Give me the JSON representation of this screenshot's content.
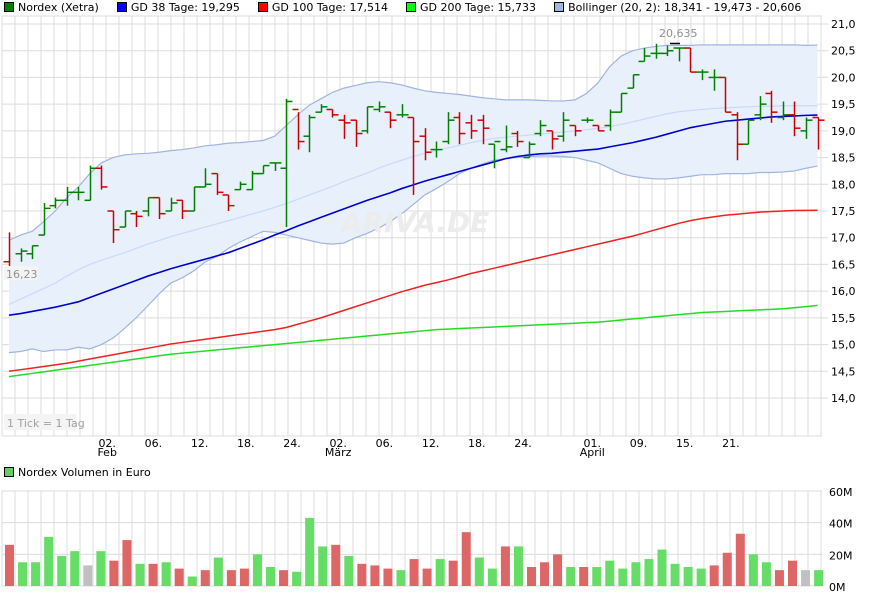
{
  "legend": {
    "items": [
      {
        "label": "Nordex (Xetra)",
        "color": "#008000"
      },
      {
        "label": "GD 38 Tage: 19,295",
        "color": "#0000ff"
      },
      {
        "label": "GD 100 Tage: 17,514",
        "color": "#ff0000"
      },
      {
        "label": "GD 200 Tage: 15,733",
        "color": "#00ff00"
      },
      {
        "label": "Bollinger (20, 2): 18,341 - 19,473 - 20,606",
        "color": "#a0b4e0"
      }
    ]
  },
  "volume_legend": {
    "label": "Nordex Volumen in Euro",
    "color": "#66cc66"
  },
  "annotations": {
    "tick_note": "1 Tick = 1 Tag",
    "low_label": "16,23",
    "high_label": "20,635",
    "watermark": "ARIVA.DE"
  },
  "colors": {
    "up": "#008000",
    "down": "#cc0000",
    "gd38": "#0000cc",
    "gd100": "#ee2222",
    "gd200": "#22dd22",
    "bollinger_fill": "#e8f0fc",
    "bollinger_line": "#a0b4e0",
    "bollinger_mid": "#c8daf6",
    "grid": "#dcdcdc",
    "vol_up": "#66dd66",
    "vol_down": "#dd6666",
    "vol_neutral": "#c0c0c0"
  },
  "chart_data": [
    {
      "type": "line",
      "title": "Nordex (Xetra)",
      "subtitle": "1 Tick = 1 Tag",
      "xlabel": "",
      "ylabel": "",
      "ylim": [
        13.5,
        21.2
      ],
      "yticks": [
        "21,0",
        "20,5",
        "20,0",
        "19,5",
        "19,0",
        "18,5",
        "18,0",
        "17,5",
        "17,0",
        "16,5",
        "16,0",
        "15,5",
        "15,0",
        "14,5",
        "14,0"
      ],
      "xticks": [
        {
          "label": "02.",
          "sub": "Feb",
          "idx": 4
        },
        {
          "label": "06.",
          "sub": "",
          "idx": 8
        },
        {
          "label": "12.",
          "sub": "",
          "idx": 12
        },
        {
          "label": "18.",
          "sub": "",
          "idx": 16
        },
        {
          "label": "24.",
          "sub": "",
          "idx": 20
        },
        {
          "label": "02.",
          "sub": "März",
          "idx": 24
        },
        {
          "label": "06.",
          "sub": "",
          "idx": 28
        },
        {
          "label": "12.",
          "sub": "",
          "idx": 32
        },
        {
          "label": "18.",
          "sub": "",
          "idx": 36
        },
        {
          "label": "24.",
          "sub": "",
          "idx": 40
        },
        {
          "label": "01.",
          "sub": "April",
          "idx": 46
        },
        {
          "label": "09.",
          "sub": "",
          "idx": 50
        },
        {
          "label": "15.",
          "sub": "",
          "idx": 54
        },
        {
          "label": "21.",
          "sub": "",
          "idx": 58
        }
      ],
      "grid": true,
      "legend_position": "top",
      "ohlc": [
        [
          16.55,
          17.1,
          16.23,
          16.4
        ],
        [
          16.7,
          16.8,
          16.55,
          16.75
        ],
        [
          16.7,
          16.85,
          16.6,
          16.85
        ],
        [
          17.05,
          17.65,
          17.05,
          17.55
        ],
        [
          17.6,
          17.75,
          17.55,
          17.7
        ],
        [
          17.7,
          17.95,
          17.6,
          17.85
        ],
        [
          17.85,
          17.95,
          17.7,
          17.85
        ],
        [
          17.7,
          18.35,
          17.7,
          18.3
        ],
        [
          18.3,
          18.35,
          17.9,
          17.95
        ],
        [
          17.5,
          17.5,
          16.9,
          17.15
        ],
        [
          17.2,
          17.5,
          17.2,
          17.5
        ],
        [
          17.45,
          17.5,
          17.2,
          17.4
        ],
        [
          17.5,
          17.75,
          17.4,
          17.75
        ],
        [
          17.75,
          17.75,
          17.35,
          17.45
        ],
        [
          17.5,
          17.75,
          17.5,
          17.65
        ],
        [
          17.7,
          17.7,
          17.35,
          17.5
        ],
        [
          17.5,
          17.95,
          17.5,
          17.95
        ],
        [
          17.95,
          18.3,
          17.95,
          18.0
        ],
        [
          18.2,
          18.2,
          17.8,
          17.85
        ],
        [
          17.8,
          17.8,
          17.5,
          17.6
        ],
        [
          17.9,
          18.05,
          17.9,
          18.0
        ],
        [
          17.9,
          18.25,
          17.9,
          18.2
        ],
        [
          18.2,
          18.35,
          18.2,
          18.35
        ],
        [
          18.4,
          18.4,
          18.25,
          18.4
        ],
        [
          18.3,
          19.6,
          17.2,
          19.55
        ],
        [
          19.4,
          19.35,
          18.65,
          18.8
        ],
        [
          18.9,
          19.3,
          18.6,
          19.25
        ],
        [
          19.35,
          19.5,
          19.35,
          19.45
        ],
        [
          19.4,
          19.4,
          19.25,
          19.3
        ],
        [
          19.2,
          19.3,
          18.85,
          19.15
        ],
        [
          19.2,
          19.2,
          18.7,
          18.95
        ],
        [
          19.0,
          19.45,
          18.95,
          19.45
        ],
        [
          19.4,
          19.55,
          19.35,
          19.45
        ],
        [
          19.35,
          19.35,
          19.05,
          19.2
        ],
        [
          19.3,
          19.5,
          19.25,
          19.3
        ],
        [
          19.25,
          19.25,
          17.8,
          18.8
        ],
        [
          18.9,
          19.05,
          18.45,
          18.6
        ],
        [
          18.65,
          18.8,
          18.5,
          18.65
        ],
        [
          18.8,
          19.35,
          18.75,
          19.2
        ],
        [
          19.25,
          19.35,
          18.75,
          18.95
        ],
        [
          19.15,
          19.3,
          18.85,
          19.0
        ],
        [
          19.2,
          19.3,
          18.75,
          19.05
        ],
        [
          18.75,
          18.75,
          18.3,
          18.8
        ],
        [
          18.65,
          19.1,
          18.6,
          18.7
        ],
        [
          18.95,
          19.0,
          18.7,
          18.8
        ],
        [
          18.5,
          18.8,
          18.5,
          18.75
        ],
        [
          18.95,
          19.2,
          18.9,
          19.1
        ],
        [
          19.0,
          19.0,
          18.65,
          18.85
        ],
        [
          18.9,
          19.35,
          18.8,
          19.2
        ],
        [
          19.1,
          19.1,
          18.9,
          19.0
        ],
        [
          19.2,
          19.25,
          19.15,
          19.2
        ],
        [
          19.1,
          19.1,
          19.0,
          19.0
        ],
        [
          19.1,
          19.4,
          19.0,
          19.35
        ],
        [
          19.35,
          19.7,
          19.35,
          19.7
        ],
        [
          19.8,
          20.05,
          19.8,
          20.05
        ],
        [
          20.3,
          20.55,
          20.3,
          20.4
        ],
        [
          20.45,
          20.63,
          20.35,
          20.45
        ],
        [
          20.45,
          20.6,
          20.4,
          20.5
        ],
        [
          20.55,
          20.55,
          20.3,
          20.55
        ],
        [
          20.55,
          20.55,
          20.1,
          20.1
        ],
        [
          20.1,
          20.15,
          19.95,
          20.1
        ],
        [
          20.0,
          20.15,
          19.75,
          20.0
        ],
        [
          20.0,
          20.0,
          19.35,
          19.35
        ],
        [
          19.3,
          19.35,
          18.45,
          18.75
        ],
        [
          18.75,
          19.2,
          18.75,
          19.2
        ],
        [
          19.3,
          19.65,
          19.2,
          19.5
        ],
        [
          19.7,
          19.75,
          19.15,
          19.35
        ],
        [
          19.25,
          19.55,
          19.2,
          19.3
        ],
        [
          19.3,
          19.55,
          18.9,
          19.05
        ],
        [
          19.0,
          19.25,
          18.85,
          19.2
        ],
        [
          19.25,
          19.25,
          18.65,
          19.2
        ]
      ],
      "series": [
        {
          "name": "GD 38 Tage",
          "values": [
            15.55,
            15.58,
            15.62,
            15.66,
            15.7,
            15.75,
            15.8,
            15.88,
            15.96,
            16.04,
            16.12,
            16.2,
            16.28,
            16.35,
            16.42,
            16.48,
            16.54,
            16.6,
            16.66,
            16.72,
            16.8,
            16.88,
            16.96,
            17.05,
            17.13,
            17.22,
            17.3,
            17.38,
            17.46,
            17.54,
            17.62,
            17.7,
            17.77,
            17.84,
            17.92,
            17.99,
            18.06,
            18.12,
            18.18,
            18.24,
            18.3,
            18.36,
            18.42,
            18.48,
            18.52,
            18.55,
            18.57,
            18.58,
            18.6,
            18.62,
            18.64,
            18.66,
            18.7,
            18.74,
            18.78,
            18.83,
            18.88,
            18.94,
            19.0,
            19.06,
            19.1,
            19.14,
            19.18,
            19.2,
            19.22,
            19.24,
            19.26,
            19.27,
            19.28,
            19.29,
            19.295
          ]
        },
        {
          "name": "GD 100 Tage",
          "values": [
            14.5,
            14.53,
            14.56,
            14.59,
            14.62,
            14.65,
            14.69,
            14.73,
            14.77,
            14.81,
            14.85,
            14.89,
            14.93,
            14.97,
            15.01,
            15.04,
            15.07,
            15.1,
            15.13,
            15.16,
            15.19,
            15.22,
            15.25,
            15.28,
            15.32,
            15.38,
            15.44,
            15.5,
            15.57,
            15.64,
            15.71,
            15.78,
            15.85,
            15.92,
            15.99,
            16.05,
            16.11,
            16.16,
            16.21,
            16.27,
            16.33,
            16.38,
            16.43,
            16.48,
            16.53,
            16.58,
            16.63,
            16.68,
            16.73,
            16.78,
            16.83,
            16.88,
            16.93,
            16.98,
            17.03,
            17.09,
            17.15,
            17.21,
            17.27,
            17.32,
            17.36,
            17.39,
            17.42,
            17.44,
            17.46,
            17.48,
            17.49,
            17.5,
            17.51,
            17.512,
            17.514
          ]
        },
        {
          "name": "GD 200 Tage",
          "values": [
            14.4,
            14.43,
            14.46,
            14.49,
            14.52,
            14.55,
            14.58,
            14.61,
            14.64,
            14.67,
            14.7,
            14.73,
            14.76,
            14.79,
            14.82,
            14.84,
            14.86,
            14.88,
            14.9,
            14.92,
            14.94,
            14.96,
            14.98,
            15.0,
            15.02,
            15.04,
            15.06,
            15.08,
            15.1,
            15.12,
            15.14,
            15.16,
            15.18,
            15.2,
            15.22,
            15.24,
            15.26,
            15.28,
            15.29,
            15.3,
            15.31,
            15.32,
            15.33,
            15.34,
            15.35,
            15.36,
            15.37,
            15.38,
            15.39,
            15.4,
            15.41,
            15.42,
            15.44,
            15.46,
            15.48,
            15.5,
            15.52,
            15.54,
            15.56,
            15.58,
            15.6,
            15.61,
            15.62,
            15.63,
            15.64,
            15.65,
            15.66,
            15.67,
            15.69,
            15.71,
            15.733
          ]
        },
        {
          "name": "Bollinger oben",
          "values": [
            16.95,
            17.05,
            17.12,
            17.3,
            17.5,
            17.75,
            17.95,
            18.2,
            18.4,
            18.5,
            18.55,
            18.57,
            18.58,
            18.6,
            18.63,
            18.65,
            18.68,
            18.72,
            18.74,
            18.77,
            18.78,
            18.8,
            18.82,
            18.9,
            19.1,
            19.3,
            19.48,
            19.6,
            19.72,
            19.8,
            19.85,
            19.9,
            19.92,
            19.9,
            19.86,
            19.8,
            19.75,
            19.72,
            19.7,
            19.68,
            19.65,
            19.62,
            19.6,
            19.58,
            19.58,
            19.58,
            19.57,
            19.56,
            19.56,
            19.58,
            19.7,
            19.9,
            20.2,
            20.4,
            20.5,
            20.55,
            20.58,
            20.6,
            20.6,
            20.6,
            20.61,
            20.61,
            20.61,
            20.61,
            20.61,
            20.61,
            20.61,
            20.61,
            20.61,
            20.6,
            20.606
          ]
        },
        {
          "name": "Bollinger Mitte",
          "values": [
            15.75,
            15.85,
            15.95,
            16.05,
            16.15,
            16.28,
            16.4,
            16.5,
            16.58,
            16.65,
            16.72,
            16.8,
            16.88,
            16.95,
            17.02,
            17.08,
            17.14,
            17.2,
            17.26,
            17.32,
            17.38,
            17.44,
            17.5,
            17.57,
            17.64,
            17.72,
            17.8,
            17.88,
            17.96,
            18.05,
            18.13,
            18.21,
            18.3,
            18.38,
            18.45,
            18.52,
            18.58,
            18.63,
            18.68,
            18.73,
            18.78,
            18.82,
            18.86,
            18.88,
            18.9,
            18.92,
            18.94,
            18.96,
            18.98,
            19.0,
            19.02,
            19.05,
            19.08,
            19.12,
            19.17,
            19.22,
            19.27,
            19.32,
            19.36,
            19.38,
            19.4,
            19.42,
            19.43,
            19.44,
            19.45,
            19.46,
            19.46,
            19.47,
            19.47,
            19.47,
            19.473
          ]
        },
        {
          "name": "Bollinger unten",
          "values": [
            14.85,
            14.87,
            14.92,
            14.87,
            14.9,
            14.9,
            14.95,
            14.92,
            15.0,
            15.12,
            15.3,
            15.5,
            15.72,
            15.95,
            16.15,
            16.25,
            16.38,
            16.55,
            16.65,
            16.8,
            16.92,
            17.02,
            17.12,
            17.1,
            17.05,
            17.0,
            16.95,
            16.9,
            16.88,
            16.9,
            17.0,
            17.08,
            17.18,
            17.3,
            17.45,
            17.62,
            17.8,
            17.92,
            18.05,
            18.2,
            18.3,
            18.38,
            18.45,
            18.48,
            18.5,
            18.52,
            18.53,
            18.53,
            18.52,
            18.5,
            18.45,
            18.4,
            18.3,
            18.2,
            18.15,
            18.12,
            18.1,
            18.1,
            18.12,
            18.15,
            18.18,
            18.18,
            18.2,
            18.2,
            18.2,
            18.22,
            18.22,
            18.23,
            18.25,
            18.3,
            18.341
          ]
        }
      ]
    },
    {
      "type": "bar",
      "title": "Nordex Volumen in Euro",
      "ylim": [
        0,
        60
      ],
      "yticks": [
        "60M",
        "40M",
        "20M",
        "0M"
      ],
      "values": [
        26,
        15,
        15,
        31,
        19,
        22,
        13,
        22,
        16,
        29,
        14,
        14,
        15,
        11,
        6,
        10,
        18,
        10,
        11,
        20,
        12,
        10,
        9,
        43,
        25,
        26,
        19,
        14,
        13,
        11,
        10,
        17,
        11,
        17,
        16,
        34,
        18,
        11,
        25,
        25,
        12,
        15,
        20,
        12,
        12,
        12,
        16,
        11,
        15,
        17,
        23,
        14,
        12,
        11,
        13,
        21,
        33,
        20,
        15,
        10,
        16,
        10,
        10
      ],
      "directions": [
        "d",
        "u",
        "u",
        "u",
        "u",
        "u",
        "n",
        "u",
        "d",
        "d",
        "u",
        "d",
        "u",
        "d",
        "u",
        "d",
        "u",
        "d",
        "d",
        "u",
        "u",
        "d",
        "u",
        "u",
        "u",
        "d",
        "u",
        "d",
        "d",
        "d",
        "u",
        "d",
        "d",
        "u",
        "d",
        "d",
        "u",
        "u",
        "d",
        "u",
        "d",
        "d",
        "d",
        "u",
        "d",
        "u",
        "u",
        "u",
        "u",
        "u",
        "u",
        "u",
        "u",
        "u",
        "d",
        "d",
        "d",
        "u",
        "u",
        "d",
        "d",
        "n",
        "u"
      ]
    }
  ]
}
